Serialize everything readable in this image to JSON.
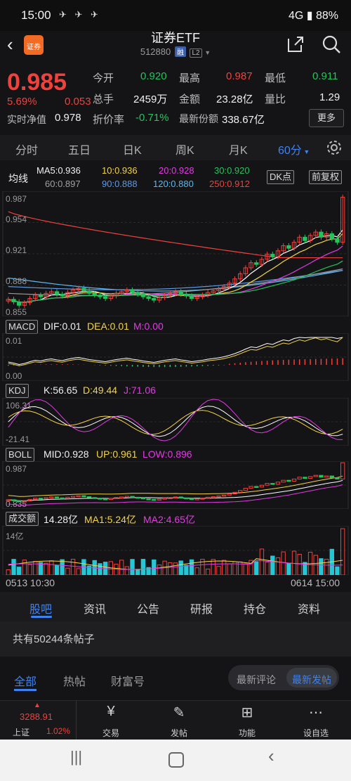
{
  "status_bar": {
    "time": "15:00",
    "notif": "✈ ✈ ✈",
    "right": "4G ▮ 88%"
  },
  "header": {
    "back_icon": "back-arrow-icon",
    "logo_text": "证券",
    "title": "证券ETF",
    "code": "512880",
    "badge_margin": "融",
    "badge_l2": "L2"
  },
  "quote": {
    "price": "0.985",
    "change_pct": "5.69%",
    "change": "0.053",
    "nav_label": "实时净值",
    "nav_value": "0.978",
    "open_label": "今开",
    "open": "0.920",
    "high_label": "最高",
    "high": "0.987",
    "low_label": "最低",
    "low": "0.911",
    "volume_label": "总手",
    "volume": "2459万",
    "amount_label": "金额",
    "amount": "23.28亿",
    "ratio_label": "量比",
    "ratio": "1.29",
    "discount_label": "折价率",
    "discount": "-0.71%",
    "shares_label": "最新份额",
    "shares": "338.67亿",
    "more": "更多"
  },
  "periods": [
    "分时",
    "五日",
    "日K",
    "周K",
    "月K",
    "60分"
  ],
  "ma_row": {
    "label": "均线",
    "ma5": "MA5:0.936",
    "ma10": "10:0.936",
    "ma20": "20:0.928",
    "ma30": "30:0.920",
    "ma60": "60:0.897",
    "ma90": "90:0.888",
    "ma120": "120:0.880",
    "ma250": "250:0.912",
    "dk": "DK点",
    "fq": "前复权"
  },
  "price_axis": [
    "0.987",
    "0.954",
    "0.921",
    "0.888",
    "0.855"
  ],
  "macd": {
    "name": "MACD",
    "dif": "DIF:0.01",
    "dea": "DEA:0.01",
    "m": "M:0.00",
    "axis_top": "0.01",
    "axis_bot": "0.00"
  },
  "kdj": {
    "name": "KDJ",
    "k": "K:56.65",
    "d": "D:49.44",
    "j": "J:71.06",
    "axis_top": "106.31",
    "axis_bot": "-21.41"
  },
  "boll": {
    "name": "BOLL",
    "mid": "MID:0.928",
    "up": "UP:0.961",
    "low": "LOW:0.896",
    "axis_top": "0.987",
    "axis_bot": "0.835"
  },
  "vol": {
    "name": "成交额",
    "amount": "14.28亿",
    "ma1": "MA1:5.24亿",
    "ma2": "MA2:4.65亿",
    "axis_top": "14亿"
  },
  "time_axis": {
    "start": "0513 10:30",
    "end": "0614 15:00"
  },
  "sub_tabs": [
    "股吧",
    "资讯",
    "公告",
    "研报",
    "持仓",
    "资料"
  ],
  "post_count": "共有50244条帖子",
  "filters": [
    "全部",
    "热帖",
    "财富号"
  ],
  "sort": {
    "left": "最新评论",
    "right": "最新发帖"
  },
  "bottom_nav": {
    "index_value": "3288.91",
    "index_name": "上证",
    "index_pct": "1.02%",
    "items": [
      {
        "label": "交易",
        "icon": "yen-icon"
      },
      {
        "label": "发帖",
        "icon": "edit-icon"
      },
      {
        "label": "功能",
        "icon": "grid-icon"
      },
      {
        "label": "设自选",
        "icon": "more-icon"
      }
    ]
  },
  "colors": {
    "up": "#f0413c",
    "down": "#24c35b",
    "accent": "#3d82f0",
    "ma5": "#ffffff",
    "ma10": "#f5d442",
    "ma20": "#e23be3",
    "ma30": "#24c35b"
  },
  "chart_data": [
    {
      "type": "candlestick",
      "title": "60分",
      "ylim": [
        0.855,
        0.987
      ],
      "closes": [
        0.865,
        0.862,
        0.858,
        0.861,
        0.866,
        0.87,
        0.868,
        0.872,
        0.874,
        0.871,
        0.869,
        0.873,
        0.876,
        0.878,
        0.875,
        0.872,
        0.87,
        0.868,
        0.866,
        0.869,
        0.872,
        0.874,
        0.876,
        0.873,
        0.871,
        0.868,
        0.866,
        0.864,
        0.867,
        0.87,
        0.872,
        0.874,
        0.871,
        0.869,
        0.866,
        0.868,
        0.87,
        0.873,
        0.875,
        0.877,
        0.88,
        0.884,
        0.889,
        0.895,
        0.902,
        0.908,
        0.906,
        0.912,
        0.918,
        0.915,
        0.922,
        0.928,
        0.925,
        0.932,
        0.938,
        0.934,
        0.94,
        0.944,
        0.938,
        0.942,
        0.936,
        0.932,
        0.985
      ],
      "series_lines": [
        "MA5",
        "MA10",
        "MA20",
        "MA30",
        "MA60",
        "MA90",
        "MA120",
        "MA250"
      ]
    },
    {
      "type": "bar",
      "title": "MACD",
      "ylim": [
        0.0,
        0.01
      ]
    },
    {
      "type": "line",
      "title": "KDJ",
      "ylim": [
        -21.41,
        106.31
      ]
    },
    {
      "type": "line",
      "title": "BOLL",
      "ylim": [
        0.835,
        0.987
      ]
    },
    {
      "type": "bar",
      "title": "成交额",
      "ylim": [
        0,
        14
      ],
      "unit": "亿"
    }
  ]
}
